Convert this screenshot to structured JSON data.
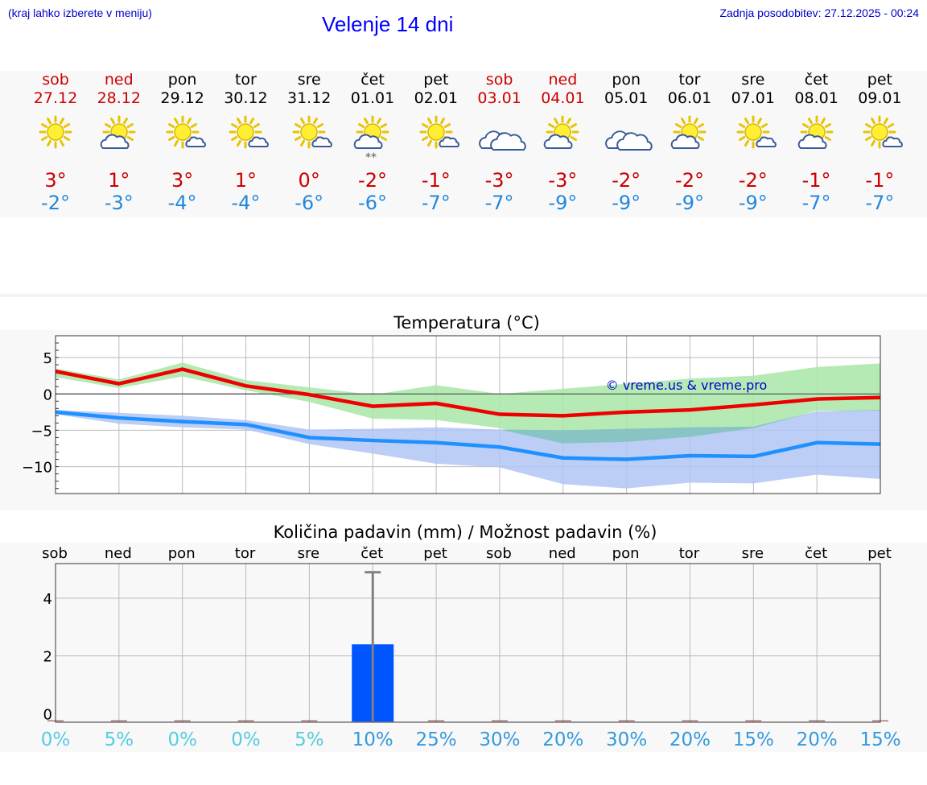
{
  "header": {
    "left_note": "(kraj lahko izberete v meniju)",
    "title": "Velenje 14 dni",
    "updated": "Zadnja posodobitev: 27.12.2025 - 00:24"
  },
  "days": [
    {
      "name": "sob",
      "date": "27.12",
      "weekend": true,
      "icon": "sun-icon",
      "tmax": "3°",
      "tmin": "-2°"
    },
    {
      "name": "ned",
      "date": "28.12",
      "weekend": true,
      "icon": "sun-cloud-icon",
      "tmax": "1°",
      "tmin": "-3°"
    },
    {
      "name": "pon",
      "date": "29.12",
      "weekend": false,
      "icon": "sun-small-cloud-icon",
      "tmax": "3°",
      "tmin": "-4°"
    },
    {
      "name": "tor",
      "date": "30.12",
      "weekend": false,
      "icon": "sun-small-cloud-icon",
      "tmax": "1°",
      "tmin": "-4°"
    },
    {
      "name": "sre",
      "date": "31.12",
      "weekend": false,
      "icon": "sun-small-cloud-icon",
      "tmax": "0°",
      "tmin": "-6°"
    },
    {
      "name": "čet",
      "date": "01.01",
      "weekend": false,
      "icon": "sun-cloud-snow-icon",
      "tmax": "-2°",
      "tmin": "-6°"
    },
    {
      "name": "pet",
      "date": "02.01",
      "weekend": false,
      "icon": "sun-small-cloud-icon",
      "tmax": "-1°",
      "tmin": "-7°"
    },
    {
      "name": "sob",
      "date": "03.01",
      "weekend": true,
      "icon": "cloud-icon",
      "tmax": "-3°",
      "tmin": "-7°"
    },
    {
      "name": "ned",
      "date": "04.01",
      "weekend": true,
      "icon": "sun-cloud-icon",
      "tmax": "-3°",
      "tmin": "-9°"
    },
    {
      "name": "pon",
      "date": "05.01",
      "weekend": false,
      "icon": "cloud-icon",
      "tmax": "-2°",
      "tmin": "-9°"
    },
    {
      "name": "tor",
      "date": "06.01",
      "weekend": false,
      "icon": "sun-cloud-icon",
      "tmax": "-2°",
      "tmin": "-9°"
    },
    {
      "name": "sre",
      "date": "07.01",
      "weekend": false,
      "icon": "sun-small-cloud-icon",
      "tmax": "-2°",
      "tmin": "-9°"
    },
    {
      "name": "čet",
      "date": "08.01",
      "weekend": false,
      "icon": "sun-cloud-icon",
      "tmax": "-1°",
      "tmin": "-7°"
    },
    {
      "name": "pet",
      "date": "09.01",
      "weekend": false,
      "icon": "sun-small-cloud-icon",
      "tmax": "-1°",
      "tmin": "-7°"
    }
  ],
  "chart_data": [
    {
      "type": "line",
      "title": "Temperatura (°C)",
      "watermark": "© vreme.us & vreme.pro",
      "x": [
        0,
        1,
        2,
        3,
        4,
        5,
        6,
        7,
        8,
        9,
        10,
        11,
        12,
        13
      ],
      "yticks": [
        5,
        0,
        -5,
        -10
      ],
      "ytick_labels": [
        "5",
        "0",
        "−5",
        "−10"
      ],
      "ylim": [
        -13.7,
        8
      ],
      "series": [
        {
          "name": "max",
          "color": "#ee0000",
          "values": [
            3.1,
            1.4,
            3.4,
            1.1,
            -0.1,
            -1.7,
            -1.3,
            -2.8,
            -3.0,
            -2.5,
            -2.2,
            -1.5,
            -0.7,
            -0.5
          ]
        },
        {
          "name": "max_band_upper",
          "color": "#a8e6a8",
          "values": [
            3.5,
            2.0,
            4.3,
            1.9,
            0.9,
            -0.1,
            1.2,
            0.0,
            0.7,
            1.4,
            2.1,
            2.5,
            3.7,
            4.2
          ]
        },
        {
          "name": "max_band_lower",
          "color": "#a8e6a8",
          "values": [
            2.3,
            0.8,
            2.4,
            0.5,
            -1.1,
            -3.4,
            -3.6,
            -4.7,
            -6.8,
            -6.6,
            -5.9,
            -4.7,
            -2.3,
            -2.3
          ]
        },
        {
          "name": "min",
          "color": "#1e90ff",
          "values": [
            -2.5,
            -3.3,
            -3.8,
            -4.2,
            -6.0,
            -6.4,
            -6.7,
            -7.3,
            -8.8,
            -9.0,
            -8.5,
            -8.6,
            -6.7,
            -6.9
          ]
        },
        {
          "name": "min_band_upper",
          "color": "#b0c4f5",
          "values": [
            -2.2,
            -2.6,
            -3.0,
            -3.6,
            -4.9,
            -4.8,
            -4.6,
            -4.9,
            -5.0,
            -4.8,
            -4.6,
            -4.5,
            -2.4,
            -2.2
          ]
        },
        {
          "name": "min_band_lower",
          "color": "#b0c4f5",
          "values": [
            -2.8,
            -4.1,
            -4.6,
            -4.9,
            -6.9,
            -8.2,
            -9.6,
            -10.1,
            -12.4,
            -13.0,
            -12.2,
            -12.3,
            -11.1,
            -11.7
          ]
        }
      ]
    },
    {
      "type": "bar",
      "title": "Količina padavin (mm) / Možnost padavin (%)",
      "categories": [
        "sob",
        "ned",
        "pon",
        "tor",
        "sre",
        "čet",
        "pet",
        "sob",
        "ned",
        "pon",
        "tor",
        "sre",
        "čet",
        "pet"
      ],
      "values": [
        0,
        0,
        0,
        0,
        0,
        2.4,
        0,
        0,
        0,
        0,
        0,
        0,
        0,
        0
      ],
      "error_upper": [
        0,
        0,
        0,
        0,
        0,
        4.9,
        0,
        0,
        0,
        0,
        0,
        0,
        0,
        0
      ],
      "probability_labels": [
        "0%",
        "5%",
        "0%",
        "0%",
        "5%",
        "10%",
        "25%",
        "30%",
        "20%",
        "30%",
        "20%",
        "15%",
        "20%",
        "15%"
      ],
      "probability_values": [
        0,
        5,
        0,
        0,
        5,
        10,
        25,
        30,
        20,
        30,
        20,
        15,
        20,
        15
      ],
      "yticks": [
        0,
        2,
        4
      ],
      "ytick_labels": [
        "0",
        "2",
        "4"
      ],
      "ylim": [
        -0.3,
        5.2
      ],
      "bar_color": "#0055ff"
    }
  ]
}
